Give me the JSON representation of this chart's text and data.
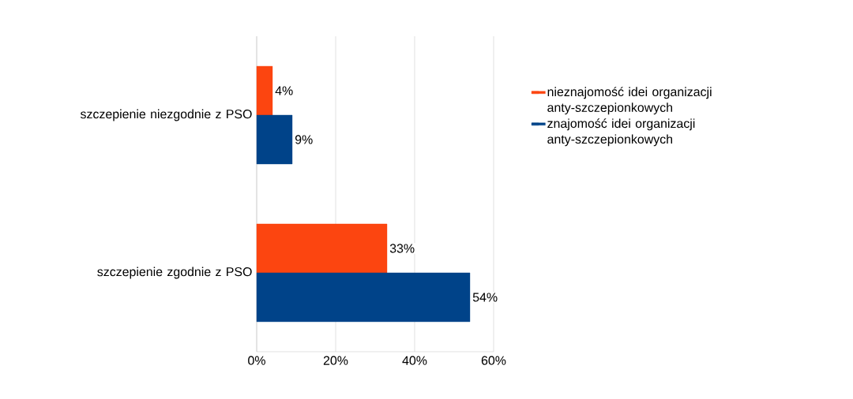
{
  "chart_data": {
    "type": "bar",
    "orientation": "horizontal",
    "categories": [
      "szczepienie niezgodnie z PSO",
      "szczepienie zgodnie z PSO"
    ],
    "series": [
      {
        "name": "nieznajomość idei organizacji anty-szczepionkowych",
        "color": "#fc4510",
        "values": [
          4,
          33
        ],
        "value_labels": [
          "4%",
          "33%"
        ]
      },
      {
        "name": "znajomość idei organizacji anty-szczepionkowych",
        "color": "#004389",
        "values": [
          9,
          54
        ],
        "value_labels": [
          "9%",
          "54%"
        ]
      }
    ],
    "xlim": [
      0,
      60
    ],
    "xticks": [
      {
        "value": 0,
        "label": "0%"
      },
      {
        "value": 20,
        "label": "20%"
      },
      {
        "value": 40,
        "label": "40%"
      },
      {
        "value": 60,
        "label": "60%"
      }
    ],
    "grid": "x",
    "legend": "right"
  }
}
